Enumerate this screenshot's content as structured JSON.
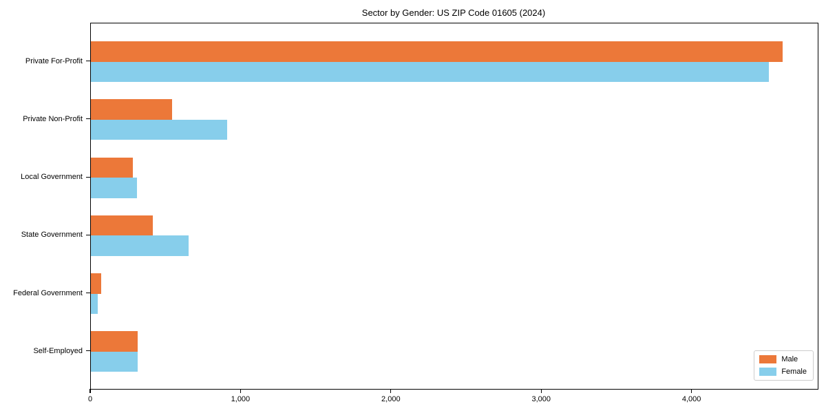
{
  "chart_data": {
    "type": "bar",
    "orientation": "horizontal",
    "title": "Sector by Gender: US ZIP Code 01605 (2024)",
    "categories": [
      "Private For-Profit",
      "Private Non-Profit",
      "Local Government",
      "State Government",
      "Federal Government",
      "Self-Employed"
    ],
    "series": [
      {
        "name": "Male",
        "color": "#EC7839",
        "values": [
          4600,
          540,
          280,
          410,
          70,
          310
        ]
      },
      {
        "name": "Female",
        "color": "#87CEEB",
        "values": [
          4510,
          905,
          305,
          650,
          45,
          310
        ]
      }
    ],
    "xlabel": "",
    "ylabel": "",
    "xlim": [
      0,
      4835
    ],
    "xticks": [
      0,
      1000,
      2000,
      3000,
      4000
    ],
    "xtick_labels": [
      "0",
      "1,000",
      "2,000",
      "3,000",
      "4,000"
    ],
    "grid": false,
    "legend_position": "lower right",
    "axis_color": "#000000",
    "background_color": "#ffffff"
  }
}
